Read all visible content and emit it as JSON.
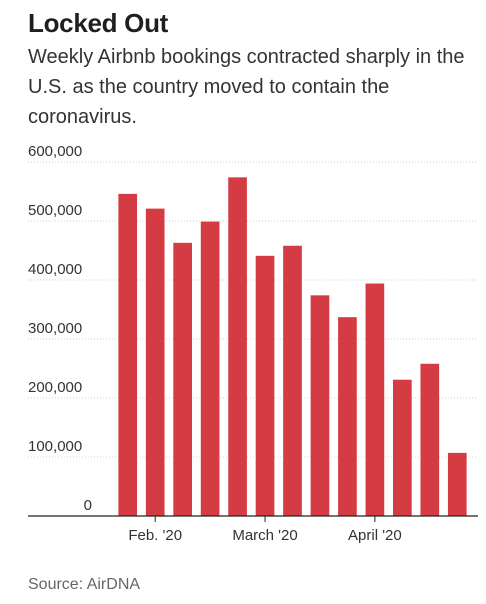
{
  "title": "Locked Out",
  "subtitle": "Weekly Airbnb bookings contracted sharply in the U.S. as the country moved to contain the coronavirus.",
  "source": "Source: AirDNA",
  "colors": {
    "bar": "#d43b42",
    "grid": "#d0d0d0",
    "axis": "#222222"
  },
  "chart_data": {
    "type": "bar",
    "title": "",
    "xlabel": "",
    "ylabel": "",
    "ylim": [
      0,
      600000
    ],
    "yticks": [
      0,
      100000,
      200000,
      300000,
      400000,
      500000,
      600000
    ],
    "ytick_labels": [
      "0",
      "100,000",
      "200,000",
      "300,000",
      "400,000",
      "500,000",
      "600,000"
    ],
    "x_month_labels": [
      {
        "label": "Feb. '20",
        "bar_index": 1
      },
      {
        "label": "March '20",
        "bar_index": 5
      },
      {
        "label": "April '20",
        "bar_index": 9
      }
    ],
    "grid": true,
    "values": [
      546000,
      521000,
      463000,
      499000,
      574000,
      441000,
      458000,
      374000,
      337000,
      394000,
      231000,
      258000,
      107000
    ]
  }
}
